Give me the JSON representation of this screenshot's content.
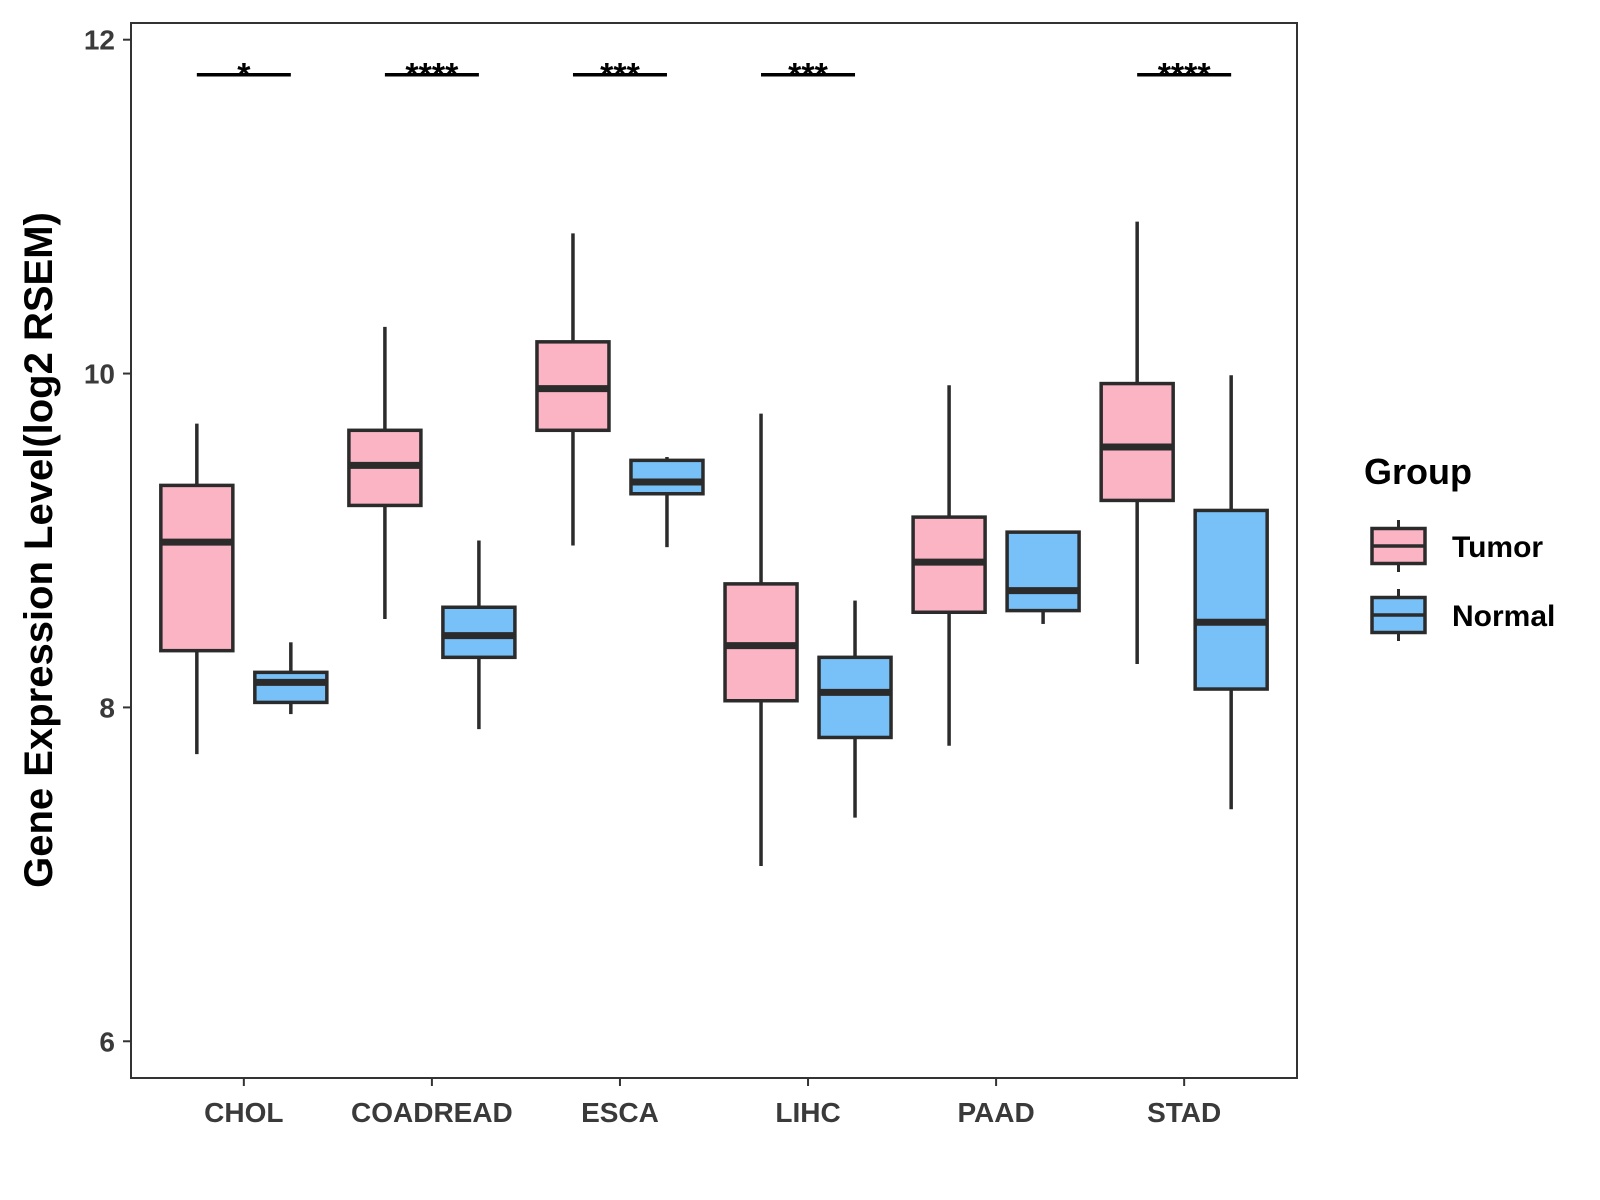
{
  "chart_data": {
    "type": "boxplot",
    "ylabel": "Gene Expression Level(log2 RSEM)",
    "xlabel": "",
    "ylim": [
      5.78,
      12.1
    ],
    "yticks": [
      6,
      8,
      10,
      12
    ],
    "categories": [
      "CHOL",
      "COADREAD",
      "ESCA",
      "LIHC",
      "PAAD",
      "STAD"
    ],
    "legend": {
      "title": "Group",
      "position": "right"
    },
    "series": [
      {
        "name": "Tumor",
        "color": "#FBB4C4",
        "boxes": [
          {
            "whisker_low": 7.72,
            "q1": 8.34,
            "median": 8.99,
            "q3": 9.33,
            "whisker_high": 9.7
          },
          {
            "whisker_low": 8.53,
            "q1": 9.21,
            "median": 9.45,
            "q3": 9.66,
            "whisker_high": 10.28
          },
          {
            "whisker_low": 8.97,
            "q1": 9.66,
            "median": 9.91,
            "q3": 10.19,
            "whisker_high": 10.84
          },
          {
            "whisker_low": 7.05,
            "q1": 8.04,
            "median": 8.37,
            "q3": 8.74,
            "whisker_high": 9.76
          },
          {
            "whisker_low": 7.77,
            "q1": 8.57,
            "median": 8.87,
            "q3": 9.14,
            "whisker_high": 9.93
          },
          {
            "whisker_low": 8.26,
            "q1": 9.24,
            "median": 9.56,
            "q3": 9.94,
            "whisker_high": 10.91
          }
        ]
      },
      {
        "name": "Normal",
        "color": "#77C1F8",
        "boxes": [
          {
            "whisker_low": 7.96,
            "q1": 8.03,
            "median": 8.15,
            "q3": 8.21,
            "whisker_high": 8.39
          },
          {
            "whisker_low": 7.87,
            "q1": 8.3,
            "median": 8.43,
            "q3": 8.6,
            "whisker_high": 9.0
          },
          {
            "whisker_low": 8.96,
            "q1": 9.28,
            "median": 9.35,
            "q3": 9.48,
            "whisker_high": 9.5
          },
          {
            "whisker_low": 7.34,
            "q1": 7.82,
            "median": 8.09,
            "q3": 8.3,
            "whisker_high": 8.64
          },
          {
            "whisker_low": 8.5,
            "q1": 8.58,
            "median": 8.7,
            "q3": 9.05,
            "whisker_high": 9.05
          },
          {
            "whisker_low": 7.39,
            "q1": 8.11,
            "median": 8.51,
            "q3": 9.18,
            "whisker_high": 9.99
          }
        ]
      }
    ],
    "significance": [
      "*",
      "****",
      "***",
      "***",
      "",
      "****"
    ],
    "significance_y": 11.79
  }
}
